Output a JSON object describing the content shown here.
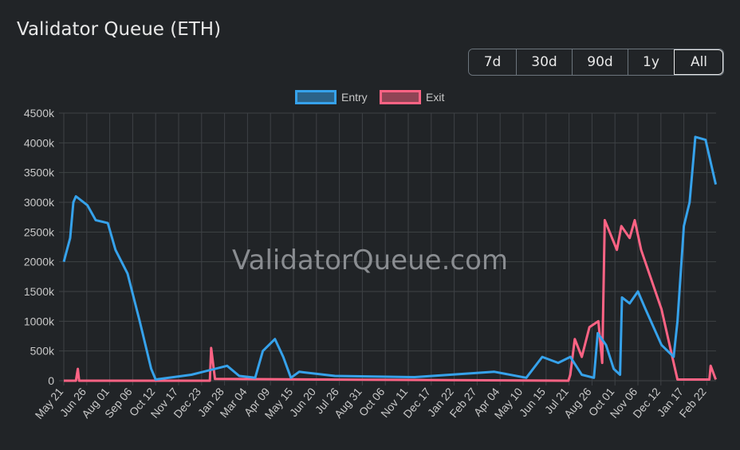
{
  "title": "Validator Queue (ETH)",
  "range_buttons": [
    {
      "label": "7d"
    },
    {
      "label": "30d"
    },
    {
      "label": "90d"
    },
    {
      "label": "1y"
    },
    {
      "label": "All",
      "active": true
    }
  ],
  "watermark": "ValidatorQueue.com",
  "colors": {
    "entry": "#36a2eb",
    "exit": "#ff6384",
    "grid": "#3e4245",
    "text": "#c8c8c8"
  },
  "chart_data": {
    "type": "line",
    "title": "",
    "xlabel": "",
    "ylabel": "",
    "ylim": [
      0,
      4500
    ],
    "y_ticks": [
      "0",
      "500k",
      "1000k",
      "1500k",
      "2000k",
      "2500k",
      "3000k",
      "3500k",
      "4000k",
      "4500k"
    ],
    "x_range": [
      "2023-05-21",
      "2026-03-08"
    ],
    "x_ticks": [
      "May 21",
      "Jun 26",
      "Aug 01",
      "Sep 06",
      "Oct 12",
      "Nov 17",
      "Dec 23",
      "Jan 28",
      "Mar 04",
      "Apr 09",
      "May 15",
      "Jun 20",
      "Jul 26",
      "Aug 31",
      "Oct 06",
      "Nov 11",
      "Dec 17",
      "Jan 22",
      "Feb 27",
      "Apr 04",
      "May 10",
      "Jun 15",
      "Jul 21",
      "Aug 26",
      "Oct 01",
      "Nov 06",
      "Dec 12",
      "Jan 17",
      "Feb 22"
    ],
    "grid": true,
    "legend": "top-center",
    "series": [
      {
        "name": "Entry",
        "unit": "k ETH",
        "points": [
          [
            "2023-05-21",
            2000
          ],
          [
            "2023-05-31",
            2400
          ],
          [
            "2023-06-05",
            3000
          ],
          [
            "2023-06-09",
            3100
          ],
          [
            "2023-06-27",
            2950
          ],
          [
            "2023-07-10",
            2700
          ],
          [
            "2023-07-29",
            2650
          ],
          [
            "2023-08-10",
            2200
          ],
          [
            "2023-08-29",
            1800
          ],
          [
            "2023-09-17",
            1000
          ],
          [
            "2023-10-05",
            200
          ],
          [
            "2023-10-12",
            20
          ],
          [
            "2023-12-07",
            100
          ],
          [
            "2024-02-01",
            250
          ],
          [
            "2024-02-20",
            80
          ],
          [
            "2024-03-16",
            50
          ],
          [
            "2024-03-28",
            500
          ],
          [
            "2024-04-16",
            700
          ],
          [
            "2024-04-29",
            400
          ],
          [
            "2024-05-11",
            50
          ],
          [
            "2024-05-24",
            150
          ],
          [
            "2024-07-19",
            80
          ],
          [
            "2024-11-21",
            60
          ],
          [
            "2025-03-26",
            150
          ],
          [
            "2025-05-15",
            50
          ],
          [
            "2025-06-09",
            400
          ],
          [
            "2025-07-04",
            300
          ],
          [
            "2025-07-23",
            400
          ],
          [
            "2025-08-10",
            100
          ],
          [
            "2025-08-29",
            50
          ],
          [
            "2025-09-04",
            800
          ],
          [
            "2025-09-17",
            600
          ],
          [
            "2025-09-29",
            200
          ],
          [
            "2025-10-09",
            100
          ],
          [
            "2025-10-12",
            1400
          ],
          [
            "2025-10-24",
            1300
          ],
          [
            "2025-11-06",
            1500
          ],
          [
            "2025-11-18",
            1200
          ],
          [
            "2025-12-13",
            600
          ],
          [
            "2026-01-01",
            400
          ],
          [
            "2026-01-07",
            1000
          ],
          [
            "2026-01-17",
            2600
          ],
          [
            "2026-01-26",
            3000
          ],
          [
            "2026-02-04",
            4100
          ],
          [
            "2026-02-20",
            4050
          ],
          [
            "2026-03-08",
            3300
          ]
        ]
      },
      {
        "name": "Exit",
        "unit": "k ETH",
        "points": [
          [
            "2023-05-21",
            0
          ],
          [
            "2023-06-09",
            0
          ],
          [
            "2023-06-12",
            200
          ],
          [
            "2023-06-14",
            0
          ],
          [
            "2024-01-05",
            0
          ],
          [
            "2024-01-07",
            550
          ],
          [
            "2024-01-13",
            30
          ],
          [
            "2025-07-20",
            0
          ],
          [
            "2025-07-23",
            100
          ],
          [
            "2025-07-30",
            700
          ],
          [
            "2025-08-10",
            400
          ],
          [
            "2025-08-22",
            900
          ],
          [
            "2025-09-05",
            1000
          ],
          [
            "2025-09-11",
            300
          ],
          [
            "2025-09-15",
            2700
          ],
          [
            "2025-10-04",
            2200
          ],
          [
            "2025-10-11",
            2600
          ],
          [
            "2025-10-24",
            2400
          ],
          [
            "2025-11-01",
            2700
          ],
          [
            "2025-11-11",
            2200
          ],
          [
            "2025-12-13",
            1200
          ],
          [
            "2026-01-01",
            300
          ],
          [
            "2026-01-07",
            20
          ],
          [
            "2026-02-26",
            20
          ],
          [
            "2026-02-28",
            250
          ],
          [
            "2026-03-08",
            20
          ]
        ]
      }
    ]
  }
}
